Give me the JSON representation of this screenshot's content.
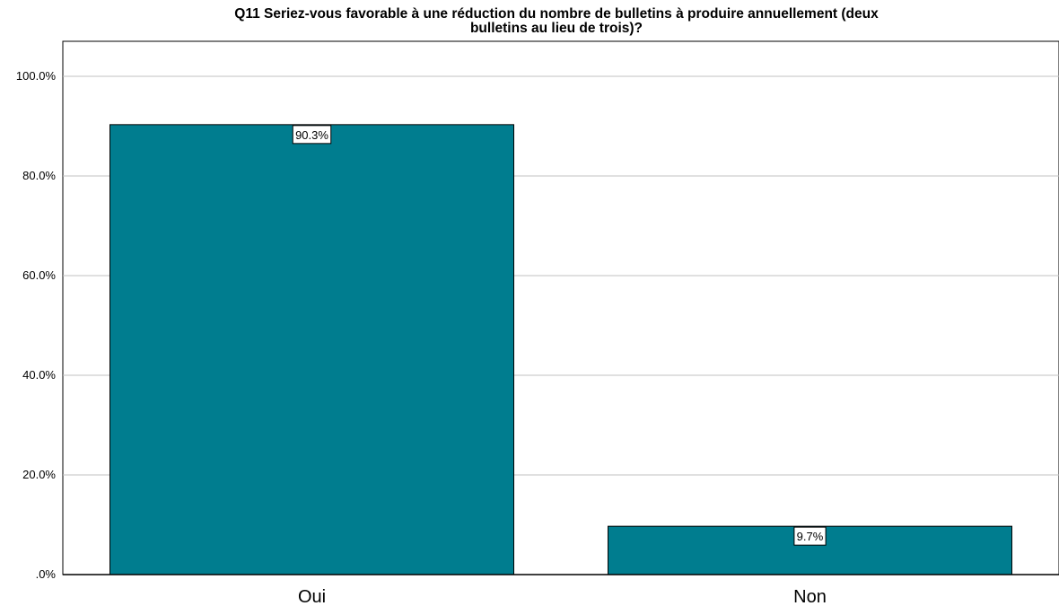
{
  "chart_data": {
    "type": "bar",
    "title_line1": "Q11 Seriez-vous favorable à une réduction du nombre de bulletins à produire annuellement (deux",
    "title_line2": "bulletins au lieu de trois)?",
    "categories": [
      "Oui",
      "Non"
    ],
    "values": [
      90.3,
      9.7
    ],
    "data_labels": [
      "90.3%",
      "9.7%"
    ],
    "y_ticks": [
      0,
      20,
      40,
      60,
      80,
      100
    ],
    "y_tick_labels": [
      ".0%",
      "20.0%",
      "40.0%",
      "60.0%",
      "80.0%",
      "100.0%"
    ],
    "ylim": [
      0,
      100
    ],
    "grid": true,
    "legend": "none",
    "bar_color": "#007D8F"
  }
}
